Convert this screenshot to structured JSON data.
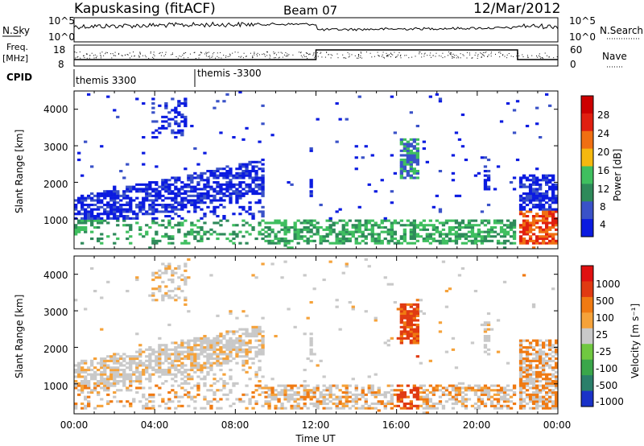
{
  "header": {
    "station": "Kapuskasing (fitACF)",
    "beam": "Beam 07",
    "date": "12/Mar/2012"
  },
  "noise_panel": {
    "left_label": "N.Sky",
    "right_label": "N.Search",
    "left_ticks": [
      "10^5",
      "10^0"
    ],
    "right_ticks": [
      "10^5",
      "10^0"
    ]
  },
  "freq_panel": {
    "left_label_1": "Freq.",
    "left_label_2": "[MHz]",
    "right_label": "Nave",
    "left_ticks": [
      "18",
      "8"
    ],
    "right_ticks": [
      "60",
      "0"
    ]
  },
  "cpid": {
    "label": "CPID",
    "modes": [
      {
        "start_hour": 0,
        "name": "themis 3300"
      },
      {
        "start_hour": 6,
        "name": "themis -3300"
      }
    ]
  },
  "x_axis": {
    "label": "Time UT",
    "ticks": [
      "00:00",
      "04:00",
      "08:00",
      "12:00",
      "16:00",
      "20:00",
      "00:00"
    ],
    "range_hours": [
      0,
      24
    ]
  },
  "panels": {
    "power": {
      "ylabel": "Slant Range [km]",
      "yticks": [
        "4000",
        "3000",
        "2000",
        "1000"
      ],
      "cbar_label": "Power [dB]",
      "cbar_ticks": [
        "28",
        "24",
        "20",
        "16",
        "12",
        "8",
        "4"
      ]
    },
    "velocity": {
      "ylabel": "Slant Range [km]",
      "yticks": [
        "4000",
        "3000",
        "2000",
        "1000"
      ],
      "cbar_label": "Velocity [m s⁻¹]",
      "cbar_ticks": [
        "1000",
        "500",
        "100",
        "25",
        "-25",
        "-100",
        "-500",
        "-1000"
      ]
    }
  },
  "chart_data": [
    {
      "type": "heatmap",
      "title": "Power",
      "xlabel": "Time UT",
      "ylabel": "Slant Range [km]",
      "xlim": [
        0,
        24
      ],
      "ylim": [
        180,
        4500
      ],
      "color_scale": {
        "label": "Power [dB]",
        "min": 0,
        "max": 30,
        "ticks": [
          4,
          8,
          12,
          16,
          20,
          24,
          28
        ],
        "colors": [
          "#0b1be0",
          "#3a52c8",
          "#2e8a5a",
          "#3fbf5f",
          "#f5b80f",
          "#f06f12",
          "#e01f10",
          "#cc0000"
        ]
      },
      "regions": [
        {
          "start_h": 0.0,
          "end_h": 9.5,
          "range_from_km": 300,
          "range_to_km": 2500,
          "note": "rising scatter band"
        },
        {
          "start_h": 4.0,
          "end_h": 5.5,
          "range_from_km": 3200,
          "range_to_km": 4300
        },
        {
          "start_h": 0.0,
          "end_h": 22.0,
          "range_from_km": 300,
          "range_to_km": 1000
        },
        {
          "start_h": 16.2,
          "end_h": 17.2,
          "range_from_km": 2100,
          "range_to_km": 3200
        },
        {
          "start_h": 22.0,
          "end_h": 24.0,
          "range_from_km": 300,
          "range_to_km": 2200
        }
      ]
    },
    {
      "type": "heatmap",
      "title": "Velocity",
      "xlabel": "Time UT",
      "ylabel": "Slant Range [km]",
      "xlim": [
        0,
        24
      ],
      "ylim": [
        180,
        4500
      ],
      "color_scale": {
        "label": "Velocity [m s-1]",
        "min": -1000,
        "max": 1000,
        "ticks": [
          1000,
          500,
          100,
          25,
          -25,
          -100,
          -500,
          -1000
        ],
        "colors": [
          "#1a32c8",
          "#2a7f6a",
          "#3aa64a",
          "#70c840",
          "#c9c9c9",
          "#f5a23a",
          "#f07a12",
          "#e03a12",
          "#e01010"
        ]
      },
      "regions": [
        {
          "start_h": 0.0,
          "end_h": 9.5,
          "range_from_km": 300,
          "range_to_km": 2500
        },
        {
          "start_h": 16.2,
          "end_h": 17.2,
          "range_from_km": 2100,
          "range_to_km": 3200
        },
        {
          "start_h": 22.0,
          "end_h": 24.0,
          "range_from_km": 300,
          "range_to_km": 2200
        }
      ]
    }
  ],
  "colors": {
    "axis": "#000000",
    "background": "#ffffff"
  }
}
